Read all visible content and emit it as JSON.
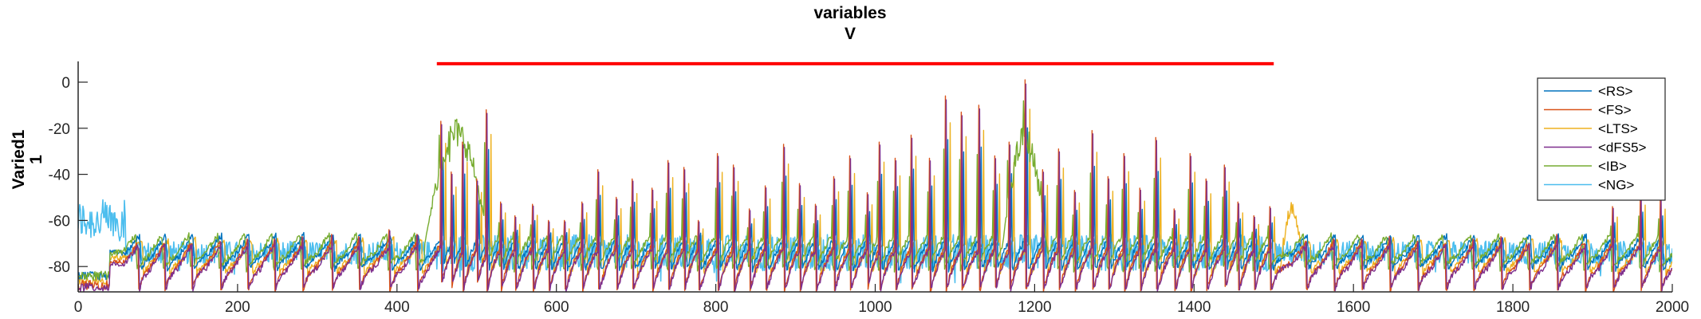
{
  "chart_data": {
    "type": "line",
    "title": "variables",
    "subtitle": "V",
    "ylabel_line1": "Varied1",
    "ylabel_line2": "1",
    "xlim": [
      0,
      2000
    ],
    "ylim": [
      -91,
      9
    ],
    "x_ticks": [
      0,
      200,
      400,
      600,
      800,
      1000,
      1200,
      1400,
      1600,
      1800,
      2000
    ],
    "x_tick_labels": [
      "0",
      "200",
      "400",
      "600",
      "800",
      "1000",
      "1200",
      "1400",
      "1600",
      "1800",
      "2000"
    ],
    "y_ticks": [
      0,
      -20,
      -40,
      -60,
      -80
    ],
    "y_tick_labels": [
      "0",
      "-20",
      "-40",
      "-60",
      "-80"
    ],
    "grid": false,
    "legend_position": "top-right",
    "stimulus_bar": {
      "x_start": 450,
      "x_end": 1500,
      "y": 8,
      "color": "#ff0000"
    },
    "series": [
      {
        "name": "<RS>",
        "color": "#0072bd"
      },
      {
        "name": "<FS>",
        "color": "#d95319"
      },
      {
        "name": "<LTS>",
        "color": "#edb120"
      },
      {
        "name": "<dFS5>",
        "color": "#7e2f8e"
      },
      {
        "name": "<IB>",
        "color": "#77ac30"
      },
      {
        "name": "<NG>",
        "color": "#4dbeee"
      }
    ],
    "spike_times": [
      75,
      108,
      142,
      178,
      212,
      246,
      281,
      318,
      352,
      390,
      425,
      455,
      468,
      482,
      500,
      512,
      530,
      548,
      570,
      590,
      610,
      632,
      652,
      675,
      695,
      720,
      740,
      760,
      778,
      802,
      822,
      842,
      862,
      885,
      905,
      925,
      948,
      968,
      990,
      1005,
      1025,
      1045,
      1068,
      1088,
      1108,
      1130,
      1150,
      1168,
      1188,
      1210,
      1230,
      1250,
      1272,
      1292,
      1312,
      1332,
      1352,
      1375,
      1395,
      1415,
      1438,
      1455,
      1475,
      1495,
      1540,
      1575,
      1610,
      1645,
      1680,
      1715,
      1750,
      1785,
      1820,
      1855,
      1890,
      1925,
      1960,
      1985
    ],
    "spike_peaks": [
      -72,
      -70,
      -70,
      -69,
      -68,
      -68,
      -67,
      -66,
      -67,
      -64,
      -66,
      -17,
      -39,
      -26,
      -42,
      -12,
      -52,
      -58,
      -53,
      -60,
      -60,
      -52,
      -38,
      -50,
      -42,
      -46,
      -34,
      -37,
      -60,
      -31,
      -36,
      -55,
      -45,
      -27,
      -44,
      -53,
      -41,
      -32,
      -48,
      -26,
      -33,
      -23,
      -33,
      -6,
      -13,
      -10,
      -32,
      -26,
      1,
      -38,
      -29,
      -47,
      -21,
      -41,
      -31,
      -46,
      -24,
      -55,
      -31,
      -42,
      -36,
      -52,
      -58,
      -54,
      -69,
      -68,
      -68,
      -67,
      -69,
      -70,
      -68,
      -67,
      -70,
      -66,
      -70,
      -54,
      -48,
      -50
    ]
  }
}
